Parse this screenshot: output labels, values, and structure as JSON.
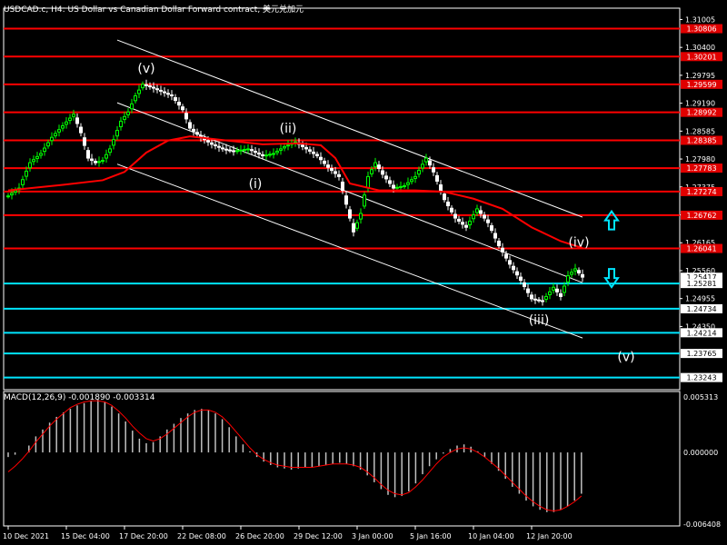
{
  "title": "USDCAD.c, H4:  US Dollar vs Canadian Dollar Forward contract, 美元兑加元",
  "macd_title": "MACD(12,26,9) -0.001890 -0.003314",
  "chart_data": {
    "type": "candlestick",
    "symbol": "USDCAD.c",
    "timeframe": "H4",
    "price_axis": {
      "ylim": [
        1.2298,
        1.3125
      ],
      "tick_labels": [
        "1.31005",
        "1.30400",
        "1.29795",
        "1.29190",
        "1.28585",
        "1.27980",
        "1.27375",
        "1.26770",
        "1.26165",
        "1.25560",
        "1.24955",
        "1.24350"
      ],
      "current_price": "1.25417"
    },
    "time_axis": {
      "labels": [
        "10 Dec 2021",
        "15 Dec 04:00",
        "17 Dec 20:00",
        "22 Dec 08:00",
        "26 Dec 20:00",
        "29 Dec 12:00",
        "3 Jan 00:00",
        "5 Jan 16:00",
        "10 Jan 04:00",
        "12 Jan 20:00"
      ],
      "bar_index": [
        0,
        16,
        32,
        48,
        64,
        80,
        96,
        112,
        128,
        144
      ]
    },
    "horizontal_levels": [
      {
        "label": "1.30806",
        "price": 1.30806,
        "color": "#ff0000"
      },
      {
        "label": "1.30201",
        "price": 1.30201,
        "color": "#ff0000"
      },
      {
        "label": "1.29599",
        "price": 1.29599,
        "color": "#ff0000"
      },
      {
        "label": "1.28992",
        "price": 1.28992,
        "color": "#ff0000"
      },
      {
        "label": "1.28385",
        "price": 1.28385,
        "color": "#ff0000"
      },
      {
        "label": "1.27783",
        "price": 1.27783,
        "color": "#ff0000"
      },
      {
        "label": "1.27274",
        "price": 1.27274,
        "color": "#ff0000"
      },
      {
        "label": "1.26762",
        "price": 1.26762,
        "color": "#ff0000"
      },
      {
        "label": "1.26041",
        "price": 1.26041,
        "color": "#ff0000"
      },
      {
        "label": "1.25281",
        "price": 1.25281,
        "color": "#00e5ff"
      },
      {
        "label": "1.24734",
        "price": 1.24734,
        "color": "#00e5ff"
      },
      {
        "label": "1.24214",
        "price": 1.24214,
        "color": "#00e5ff"
      },
      {
        "label": "1.23765",
        "price": 1.23765,
        "color": "#00e5ff"
      },
      {
        "label": "1.23243",
        "price": 1.23243,
        "color": "#00e5ff"
      }
    ],
    "wave_labels": [
      {
        "text": "(v)",
        "bar": 38,
        "price": 1.2985
      },
      {
        "text": "(ii)",
        "bar": 77,
        "price": 1.2855
      },
      {
        "text": "(i)",
        "bar": 68,
        "price": 1.2735
      },
      {
        "text": "(iv)",
        "bar": 157,
        "price": 1.2608
      },
      {
        "text": "(iii)",
        "bar": 146,
        "price": 1.244
      },
      {
        "text": "(v)",
        "bar": 170,
        "price": 1.236
      }
    ],
    "arrows": [
      {
        "direction": "up",
        "bar": 166,
        "price": 1.2665
      },
      {
        "direction": "down",
        "bar": 166,
        "price": 1.254
      }
    ],
    "channel_lines": [
      {
        "from": {
          "bar": 30,
          "price": 1.3056
        },
        "to": {
          "bar": 158,
          "price": 1.2672
        }
      },
      {
        "from": {
          "bar": 30,
          "price": 1.292
        },
        "to": {
          "bar": 158,
          "price": 1.253
        }
      },
      {
        "from": {
          "bar": 30,
          "price": 1.2787
        },
        "to": {
          "bar": 158,
          "price": 1.241
        }
      }
    ],
    "moving_average": {
      "color": "#ff0000",
      "points": [
        [
          0,
          1.273
        ],
        [
          15,
          1.2742
        ],
        [
          26,
          1.2752
        ],
        [
          32,
          1.277
        ],
        [
          38,
          1.2812
        ],
        [
          44,
          1.2838
        ],
        [
          50,
          1.2847
        ],
        [
          58,
          1.284
        ],
        [
          70,
          1.283
        ],
        [
          80,
          1.2832
        ],
        [
          86,
          1.2828
        ],
        [
          90,
          1.28
        ],
        [
          94,
          1.2745
        ],
        [
          102,
          1.273
        ],
        [
          112,
          1.273
        ],
        [
          120,
          1.2727
        ],
        [
          128,
          1.2712
        ],
        [
          136,
          1.269
        ],
        [
          144,
          1.265
        ],
        [
          152,
          1.262
        ],
        [
          158,
          1.2605
        ]
      ]
    },
    "candles_path": [
      [
        0,
        1.2718
      ],
      [
        3,
        1.2735
      ],
      [
        6,
        1.279
      ],
      [
        9,
        1.281
      ],
      [
        12,
        1.2845
      ],
      [
        15,
        1.287
      ],
      [
        18,
        1.2895
      ],
      [
        20,
        1.2855
      ],
      [
        22,
        1.28
      ],
      [
        24,
        1.279
      ],
      [
        26,
        1.2795
      ],
      [
        28,
        1.282
      ],
      [
        31,
        1.288
      ],
      [
        33,
        1.29
      ],
      [
        35,
        1.2935
      ],
      [
        37,
        1.296
      ],
      [
        39,
        1.2955
      ],
      [
        42,
        1.2945
      ],
      [
        45,
        1.2935
      ],
      [
        48,
        1.2905
      ],
      [
        50,
        1.2865
      ],
      [
        53,
        1.2845
      ],
      [
        56,
        1.283
      ],
      [
        59,
        1.282
      ],
      [
        62,
        1.2815
      ],
      [
        66,
        1.282
      ],
      [
        70,
        1.2805
      ],
      [
        73,
        1.281
      ],
      [
        76,
        1.2825
      ],
      [
        79,
        1.2835
      ],
      [
        82,
        1.282
      ],
      [
        85,
        1.2805
      ],
      [
        88,
        1.278
      ],
      [
        91,
        1.276
      ],
      [
        93,
        1.27
      ],
      [
        95,
        1.264
      ],
      [
        97,
        1.268
      ],
      [
        99,
        1.276
      ],
      [
        101,
        1.279
      ],
      [
        103,
        1.2765
      ],
      [
        106,
        1.2735
      ],
      [
        109,
        1.274
      ],
      [
        112,
        1.276
      ],
      [
        115,
        1.28
      ],
      [
        117,
        1.277
      ],
      [
        120,
        1.271
      ],
      [
        123,
        1.267
      ],
      [
        126,
        1.265
      ],
      [
        129,
        1.269
      ],
      [
        132,
        1.266
      ],
      [
        135,
        1.261
      ],
      [
        138,
        1.257
      ],
      [
        141,
        1.2535
      ],
      [
        144,
        1.2495
      ],
      [
        147,
        1.249
      ],
      [
        150,
        1.252
      ],
      [
        152,
        1.25
      ],
      [
        154,
        1.2545
      ],
      [
        156,
        1.256
      ],
      [
        158,
        1.2542
      ]
    ],
    "macd": {
      "tick_labels": [
        "0.005313",
        "0.000000",
        "-0.006408"
      ],
      "ylim": [
        -0.006408,
        0.005313
      ],
      "histogram": [
        -0.0004,
        -0.0002,
        0.0,
        0.0006,
        0.0014,
        0.002,
        0.0026,
        0.0031,
        0.0035,
        0.0038,
        0.0041,
        0.0043,
        0.0045,
        0.0046,
        0.0044,
        0.004,
        0.0034,
        0.0027,
        0.0019,
        0.0012,
        0.0008,
        0.0009,
        0.0014,
        0.002,
        0.0025,
        0.003,
        0.0034,
        0.0037,
        0.0038,
        0.0037,
        0.0034,
        0.0029,
        0.0022,
        0.0014,
        0.0007,
        0.0001,
        -0.0004,
        -0.0008,
        -0.0011,
        -0.0013,
        -0.0014,
        -0.0015,
        -0.0014,
        -0.0013,
        -0.0013,
        -0.0012,
        -0.0011,
        -0.001,
        -0.0009,
        -0.001,
        -0.0012,
        -0.0015,
        -0.002,
        -0.0026,
        -0.0032,
        -0.0037,
        -0.0039,
        -0.0038,
        -0.0034,
        -0.0027,
        -0.0019,
        -0.0012,
        -0.0006,
        -0.0001,
        0.0003,
        0.0006,
        0.0007,
        0.0005,
        0.0001,
        -0.0004,
        -0.001,
        -0.0016,
        -0.0023,
        -0.003,
        -0.0036,
        -0.0042,
        -0.0047,
        -0.005,
        -0.0052,
        -0.0052,
        -0.005,
        -0.0047,
        -0.0042,
        -0.0036
      ],
      "signal": [
        -0.0017,
        -0.0012,
        -0.0006,
        0.0001,
        0.0009,
        0.0016,
        0.0023,
        0.0029,
        0.0034,
        0.0039,
        0.0042,
        0.0044,
        0.0045,
        0.0045,
        0.0044,
        0.0041,
        0.0036,
        0.003,
        0.0023,
        0.0017,
        0.0012,
        0.001,
        0.0012,
        0.0016,
        0.0021,
        0.0026,
        0.0031,
        0.0035,
        0.0037,
        0.0037,
        0.0035,
        0.0031,
        0.0025,
        0.0018,
        0.0011,
        0.0004,
        -0.0002,
        -0.0006,
        -0.0009,
        -0.0011,
        -0.0012,
        -0.0013,
        -0.0013,
        -0.0013,
        -0.0013,
        -0.0012,
        -0.0011,
        -0.001,
        -0.001,
        -0.001,
        -0.0011,
        -0.0013,
        -0.0017,
        -0.0022,
        -0.0028,
        -0.0033,
        -0.0036,
        -0.0037,
        -0.0035,
        -0.003,
        -0.0024,
        -0.0017,
        -0.001,
        -0.0004,
        0.0,
        0.0003,
        0.0004,
        0.0003,
        0.0,
        -0.0004,
        -0.0009,
        -0.0014,
        -0.002,
        -0.0026,
        -0.0032,
        -0.0038,
        -0.0043,
        -0.0047,
        -0.005,
        -0.0051,
        -0.005,
        -0.0047,
        -0.0043,
        -0.0038
      ]
    }
  }
}
